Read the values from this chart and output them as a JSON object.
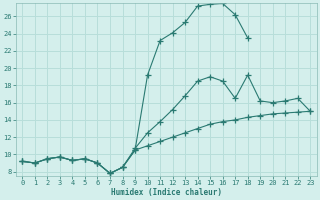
{
  "xlabel": "Humidex (Indice chaleur)",
  "bg_color": "#d4efec",
  "grid_color": "#b8deda",
  "line_color": "#2a7a72",
  "xlim": [
    -0.5,
    23.5
  ],
  "ylim": [
    7.5,
    27.5
  ],
  "xticks": [
    0,
    1,
    2,
    3,
    4,
    5,
    6,
    7,
    8,
    9,
    10,
    11,
    12,
    13,
    14,
    15,
    16,
    17,
    18,
    19,
    20,
    21,
    22,
    23
  ],
  "yticks": [
    8,
    10,
    12,
    14,
    16,
    18,
    20,
    22,
    24,
    26
  ],
  "curve_top_x": [
    0,
    1,
    2,
    3,
    4,
    5,
    6,
    7,
    8,
    9,
    10,
    11,
    12,
    13,
    14,
    15,
    16,
    17,
    18
  ],
  "curve_top_y": [
    9.2,
    9.0,
    9.5,
    9.7,
    9.3,
    9.5,
    9.0,
    7.8,
    8.5,
    10.5,
    19.2,
    23.2,
    24.1,
    25.3,
    27.2,
    27.4,
    27.5,
    26.2,
    23.5
  ],
  "curve_mid_x": [
    0,
    1,
    2,
    3,
    4,
    5,
    6,
    7,
    8,
    9,
    10,
    11,
    12,
    13,
    14,
    15,
    16,
    17,
    18,
    19,
    20,
    21,
    22,
    23
  ],
  "curve_mid_y": [
    9.2,
    9.0,
    9.5,
    9.7,
    9.3,
    9.5,
    9.0,
    7.8,
    8.5,
    10.7,
    12.5,
    13.8,
    15.2,
    16.8,
    18.5,
    19.0,
    18.5,
    16.5,
    19.2,
    16.2,
    16.0,
    16.2,
    16.5,
    15.0
  ],
  "curve_bot_x": [
    0,
    1,
    2,
    3,
    4,
    5,
    6,
    7,
    8,
    9,
    10,
    11,
    12,
    13,
    14,
    15,
    16,
    17,
    18,
    19,
    20,
    21,
    22,
    23
  ],
  "curve_bot_y": [
    9.2,
    9.0,
    9.5,
    9.7,
    9.3,
    9.5,
    9.0,
    7.8,
    8.5,
    10.5,
    11.0,
    11.5,
    12.0,
    12.5,
    13.0,
    13.5,
    13.8,
    14.0,
    14.3,
    14.5,
    14.7,
    14.8,
    14.9,
    15.0
  ]
}
